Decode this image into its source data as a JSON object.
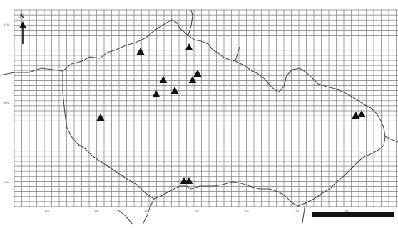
{
  "map": {
    "north_label": "N",
    "locality_count": 12,
    "bottom_ticks": [
      "12E",
      "13E",
      "14E",
      "15E",
      "16E",
      "17E",
      "18E"
    ],
    "left_ticks": [
      "51N",
      "50N",
      "49N"
    ],
    "marker_symbol": "triangle",
    "marker_color": "#111111",
    "grid_color": "#7a7a7a",
    "border_color": "#4a4a4a"
  }
}
